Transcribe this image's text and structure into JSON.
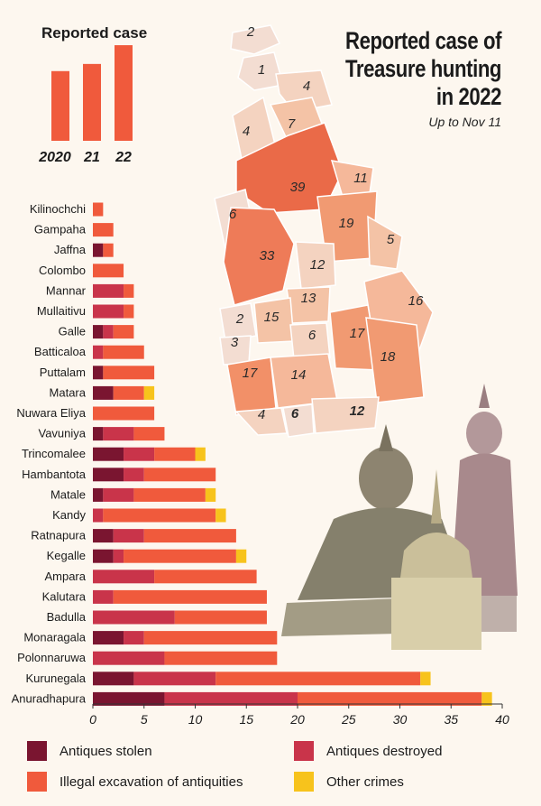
{
  "title": {
    "lines": [
      "Reported case of",
      "Treasure hunting",
      "in 2022"
    ],
    "subtitle": "Up to Nov 11"
  },
  "colors": {
    "stolen": "#7a1530",
    "destroyed": "#c9344a",
    "excavation": "#f05a3c",
    "other": "#f7c31c"
  },
  "chart_data": [
    {
      "type": "bar",
      "title": "Reported case",
      "categories": [
        "2020",
        "21",
        "22"
      ],
      "values": [
        78,
        86,
        107
      ]
    },
    {
      "type": "bar",
      "orientation": "horizontal",
      "stacked": true,
      "categories": [
        "Kilinochchi",
        "Gampaha",
        "Jaffna",
        "Colombo",
        "Mannar",
        "Mullaitivu",
        "Galle",
        "Batticaloa",
        "Puttalam",
        "Matara",
        "Nuwara Eliya",
        "Vavuniya",
        "Trincomalee",
        "Hambantota",
        "Matale",
        "Kandy",
        "Ratnapura",
        "Kegalle",
        "Ampara",
        "Kalutara",
        "Badulla",
        "Monaragala",
        "Polonnaruwa",
        "Kurunegala",
        "Anuradhapura"
      ],
      "series": [
        {
          "name": "Antiques stolen",
          "values": [
            0,
            0,
            1,
            0,
            0,
            0,
            1,
            0,
            1,
            2,
            0,
            1,
            3,
            3,
            1,
            0,
            2,
            2,
            0,
            0,
            0,
            3,
            0,
            4,
            7
          ]
        },
        {
          "name": "Antiques destroyed",
          "values": [
            0,
            0,
            0,
            0,
            3,
            3,
            1,
            1,
            0,
            0,
            0,
            3,
            3,
            2,
            3,
            1,
            3,
            1,
            6,
            2,
            8,
            2,
            7,
            8,
            13
          ]
        },
        {
          "name": "Illegal excavation of antiquities",
          "values": [
            1,
            2,
            1,
            3,
            1,
            1,
            2,
            4,
            5,
            3,
            6,
            3,
            4,
            7,
            7,
            11,
            9,
            11,
            10,
            15,
            9,
            13,
            11,
            20,
            18
          ]
        },
        {
          "name": "Other crimes",
          "values": [
            0,
            0,
            0,
            0,
            0,
            0,
            0,
            0,
            0,
            1,
            0,
            0,
            1,
            0,
            1,
            1,
            0,
            1,
            0,
            0,
            0,
            0,
            0,
            1,
            1
          ]
        }
      ],
      "xlim": [
        0,
        40
      ],
      "xticks": [
        0,
        5,
        10,
        15,
        20,
        25,
        30,
        35,
        40
      ],
      "legend": "bottom"
    },
    {
      "type": "map",
      "region_values": [
        "2",
        "1",
        "4",
        "4",
        "7",
        "39",
        "11",
        "6",
        "19",
        "5",
        "33",
        "12",
        "13",
        "16",
        "2",
        "15",
        "3",
        "6",
        "17",
        "18",
        "17",
        "14",
        "4",
        "6",
        "12"
      ]
    }
  ]
}
